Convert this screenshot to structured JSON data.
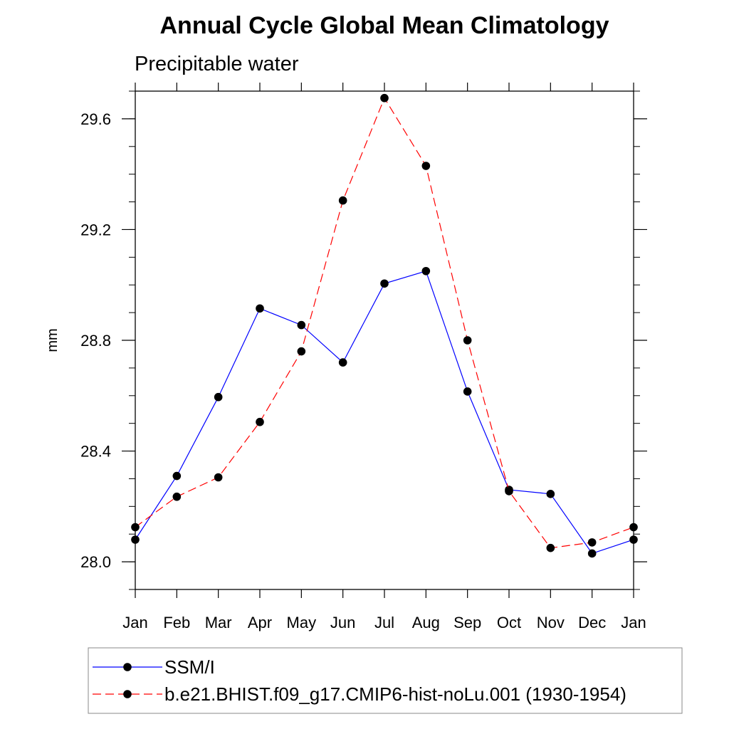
{
  "chart_data": {
    "type": "line",
    "title": "Annual Cycle Global Mean Climatology",
    "subtitle": "Precipitable water",
    "xlabel": "",
    "ylabel": "mm",
    "categories": [
      "Jan",
      "Feb",
      "Mar",
      "Apr",
      "May",
      "Jun",
      "Jul",
      "Aug",
      "Sep",
      "Oct",
      "Nov",
      "Dec",
      "Jan"
    ],
    "ylim": [
      27.9,
      29.7
    ],
    "yticks": [
      28.0,
      28.4,
      28.8,
      29.2,
      29.6
    ],
    "ytick_labels": [
      "28.0",
      "28.4",
      "28.8",
      "29.2",
      "29.6"
    ],
    "grid": false,
    "legend_position": "bottom",
    "series": [
      {
        "name": "SSM/I",
        "color": "#0000ff",
        "dash": "solid",
        "values": [
          28.08,
          28.31,
          28.595,
          28.915,
          28.855,
          28.72,
          29.005,
          29.05,
          28.615,
          28.26,
          28.245,
          28.03,
          28.08
        ]
      },
      {
        "name": "b.e21.BHIST.f09_g17.CMIP6-hist-noLu.001 (1930-1954)",
        "color": "#ff0000",
        "dash": "dashed",
        "values": [
          28.125,
          28.235,
          28.305,
          28.505,
          28.76,
          29.305,
          29.675,
          29.43,
          28.8,
          28.255,
          28.05,
          28.07,
          28.125
        ]
      }
    ]
  }
}
